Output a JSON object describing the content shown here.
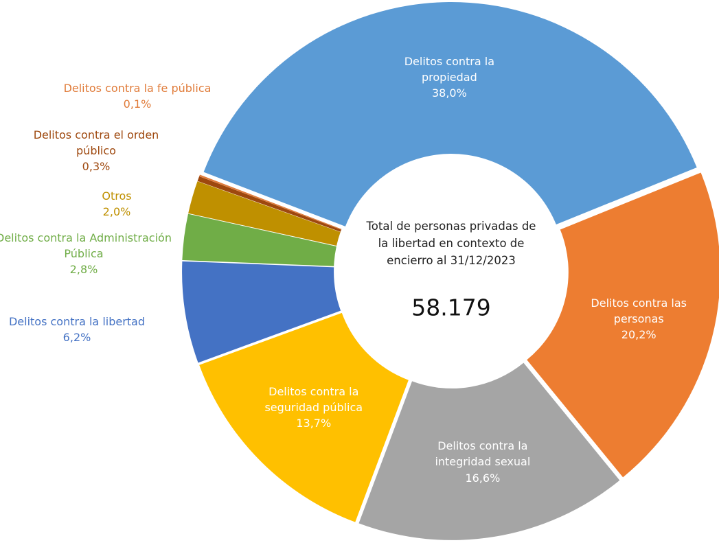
{
  "chart_data": {
    "type": "donut",
    "center_text": "Total de personas privadas de la libertad  en contexto de encierro al 31/12/2023",
    "center_total": "58.179",
    "categories": [
      "Delitos contra la propiedad",
      "Delitos contra las personas",
      "Delitos contra la integridad sexual",
      "Delitos contra la seguridad pública",
      "Delitos contra la libertad",
      "Delitos contra la Administración Pública",
      "Otros",
      "Delitos contra el orden público",
      "Delitos contra la fe pública"
    ],
    "values": [
      38.0,
      20.2,
      16.6,
      13.7,
      6.2,
      2.8,
      2.0,
      0.3,
      0.1
    ],
    "value_labels": [
      "38,0%",
      "20,2%",
      "16,6%",
      "13,7%",
      "6,2%",
      "2,8%",
      "2,0%",
      "0,3%",
      "0,1%"
    ],
    "colors": [
      "#5b9bd5",
      "#ed7d31",
      "#a5a5a5",
      "#ffc000",
      "#4472c4",
      "#70ad47",
      "#bf9000",
      "#9e480e",
      "#e07b39"
    ]
  }
}
